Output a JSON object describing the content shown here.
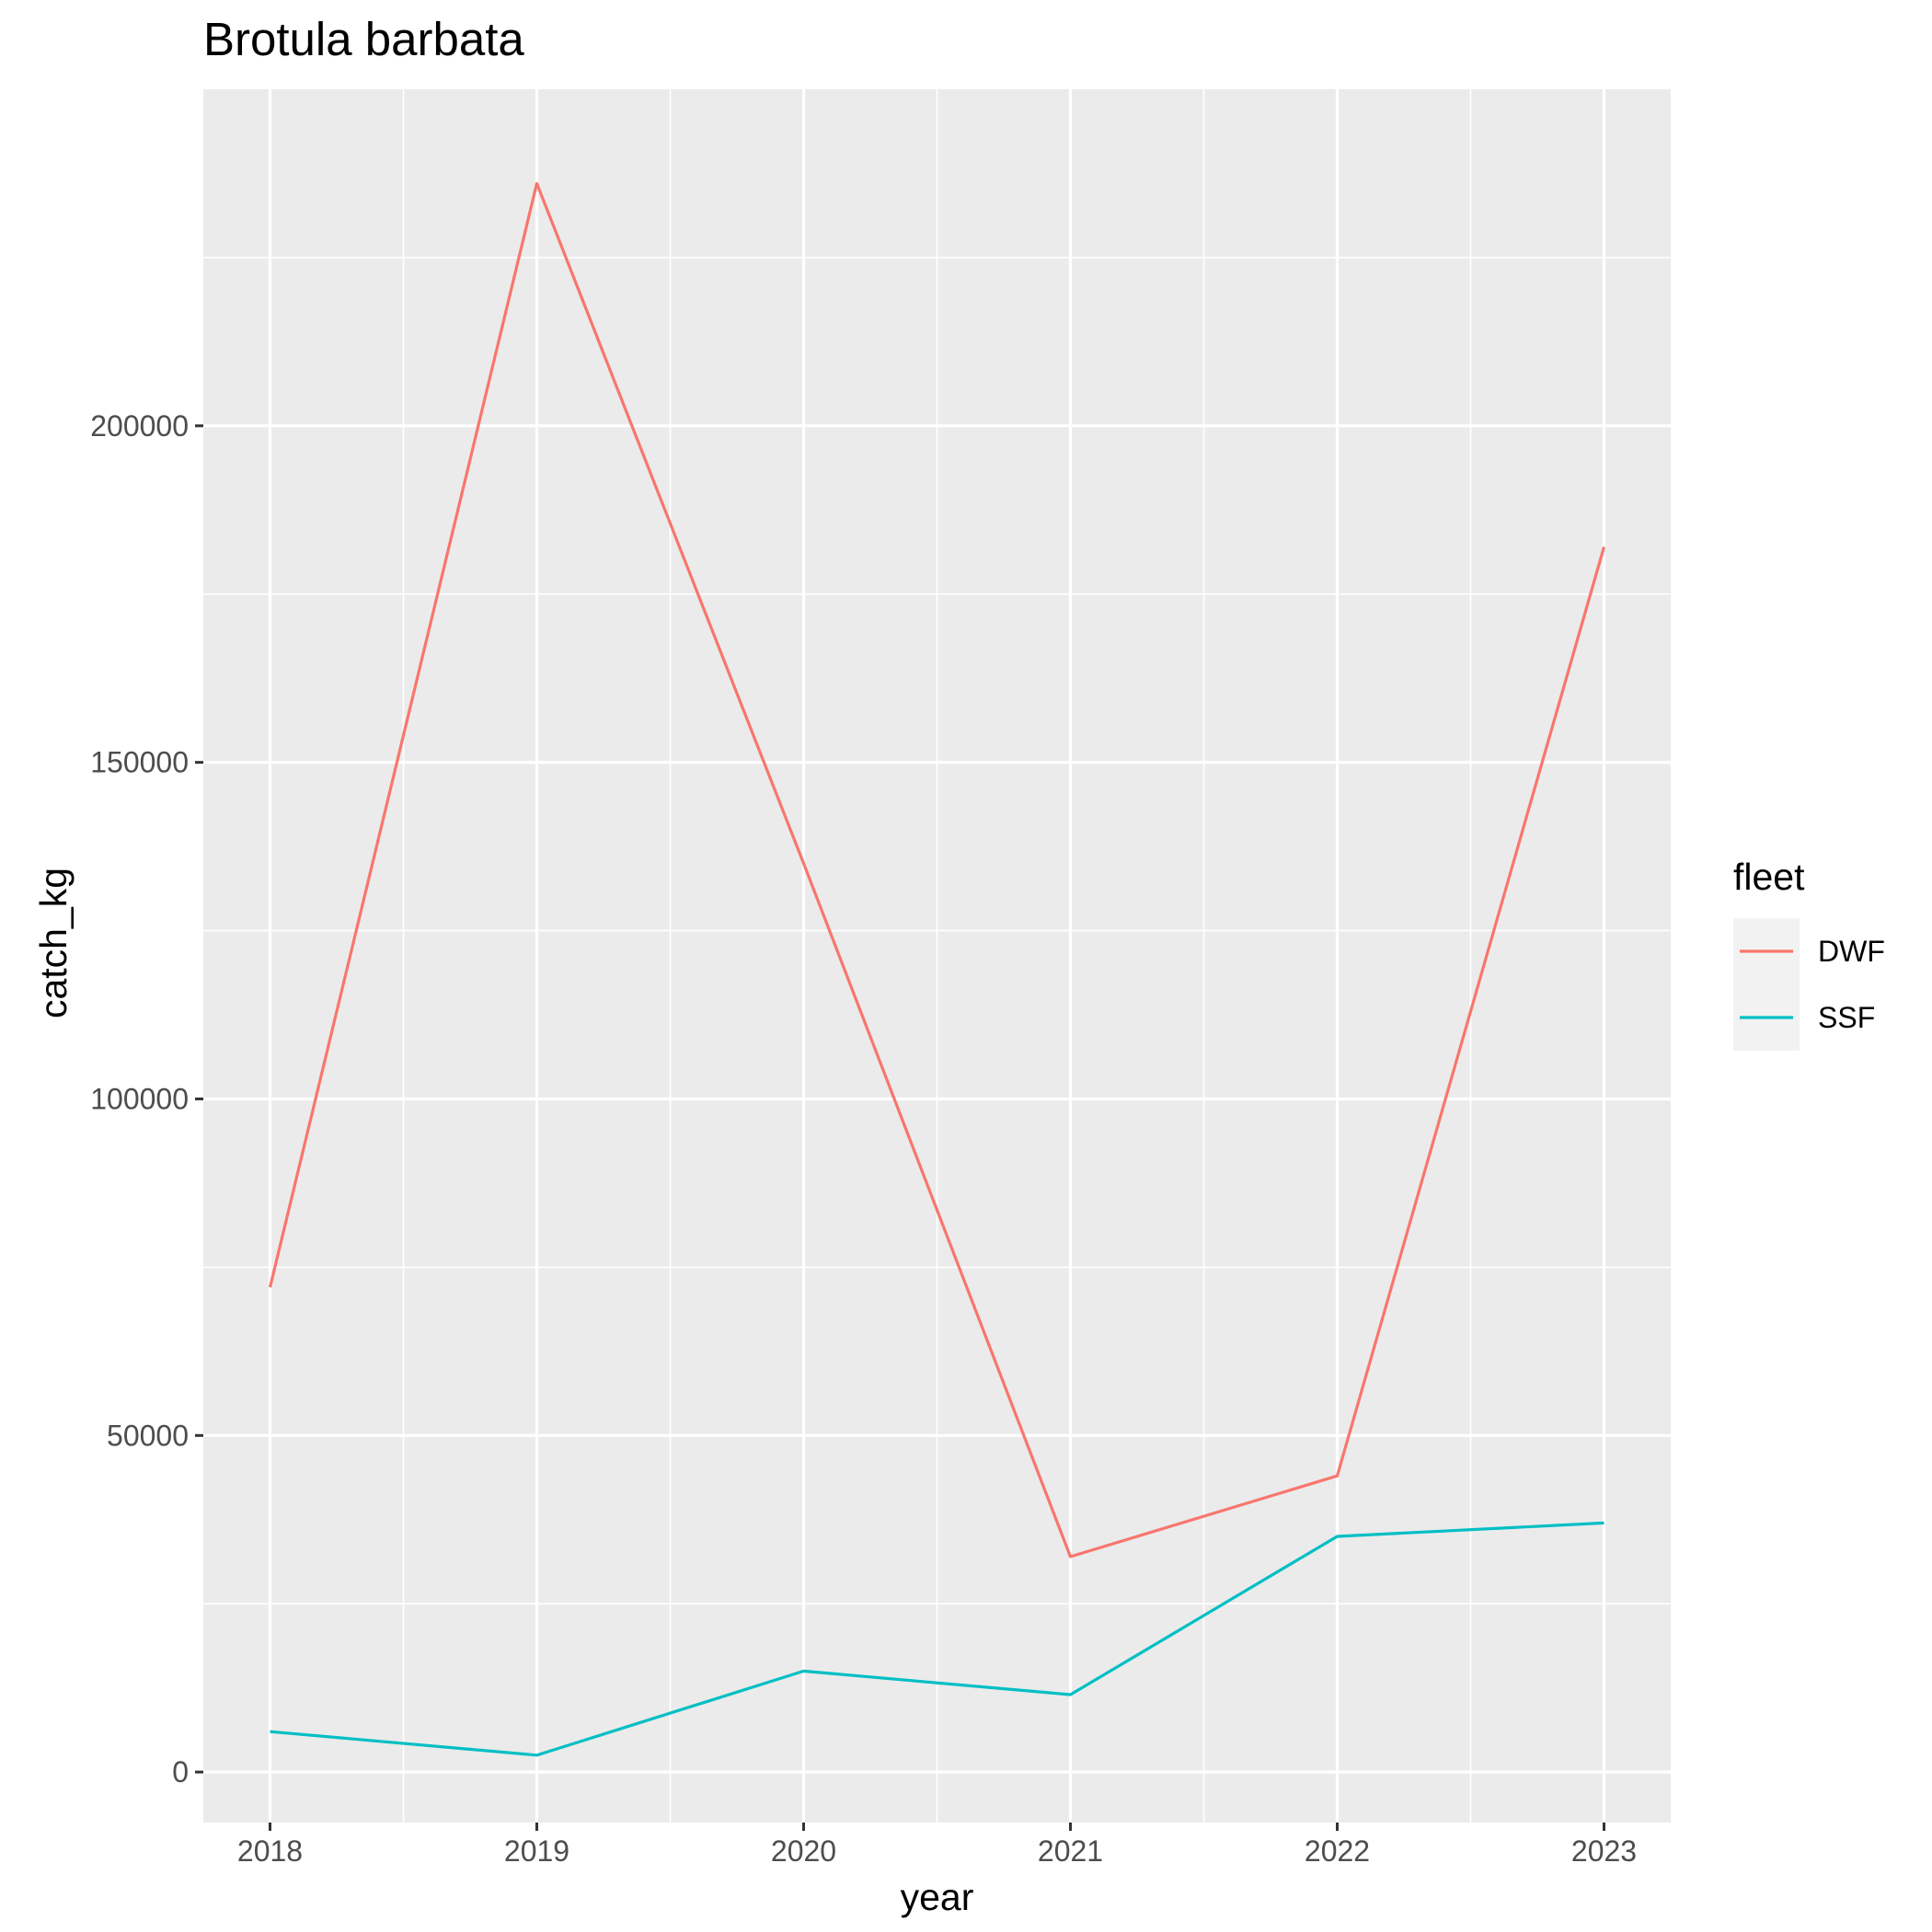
{
  "chart_data": {
    "type": "line",
    "title": "Brotula barbata",
    "xlabel": "year",
    "ylabel": "catch_kg",
    "x": [
      2018,
      2019,
      2020,
      2021,
      2022,
      2023
    ],
    "xlim": [
      2017.75,
      2023.25
    ],
    "ylim": [
      -7500,
      250000
    ],
    "yticks": [
      0,
      50000,
      100000,
      150000,
      200000
    ],
    "yticks_minor": [
      25000,
      75000,
      125000,
      175000,
      225000
    ],
    "grid": true,
    "legend": {
      "title": "fleet",
      "position": "right"
    },
    "series": [
      {
        "name": "DWF",
        "color": "#F8766D",
        "values": [
          72000,
          236000,
          135000,
          32000,
          44000,
          182000
        ]
      },
      {
        "name": "SSF",
        "color": "#00BFC4",
        "values": [
          6000,
          2500,
          15000,
          11500,
          35000,
          37000
        ]
      }
    ]
  }
}
